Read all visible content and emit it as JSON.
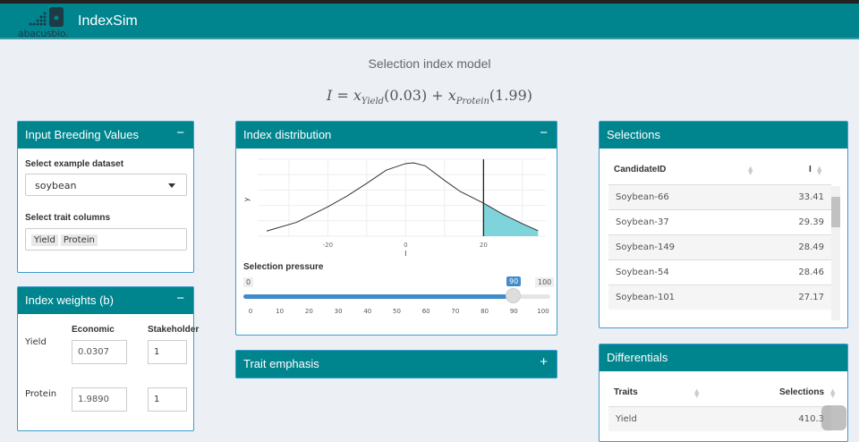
{
  "app": {
    "title": "IndexSim",
    "logo_text": "abacusbio."
  },
  "page": {
    "title": "Selection index model",
    "formula": {
      "lhs": "I",
      "t1_sub": "Yield",
      "t1_coef": "(0.03)",
      "t2_sub": "Protein",
      "t2_coef": "(1.99)"
    }
  },
  "colors": {
    "header": "#00858f",
    "fill": "#7fd3da",
    "slider": "#428bca"
  },
  "input_bv": {
    "title": "Input Breeding Values",
    "collapse_icon": "−",
    "dataset_label": "Select example dataset",
    "dataset_value": "soybean",
    "traits_label": "Select trait columns",
    "traits": [
      "Yield",
      "Protein"
    ]
  },
  "weights": {
    "title": "Index weights (b)",
    "collapse_icon": "−",
    "col1": "Economic",
    "col2": "Stakeholder",
    "rows": [
      {
        "trait": "Yield",
        "economic": "0.0307",
        "stakeholder": "1"
      },
      {
        "trait": "Protein",
        "economic": "1.9890",
        "stakeholder": "1"
      }
    ]
  },
  "distribution": {
    "title": "Index distribution",
    "collapse_icon": "−",
    "slider_label": "Selection pressure",
    "slider_min": "0",
    "slider_max": "100",
    "slider_value": "90",
    "slider_ticks": [
      "0",
      "10",
      "20",
      "30",
      "40",
      "50",
      "60",
      "70",
      "80",
      "90",
      "100"
    ]
  },
  "trait_emphasis": {
    "title": "Trait emphasis",
    "expand_icon": "+"
  },
  "selections": {
    "title": "Selections",
    "col1": "CandidateID",
    "col2": "I",
    "rows": [
      [
        "Soybean-66",
        "33.41"
      ],
      [
        "Soybean-37",
        "29.39"
      ],
      [
        "Soybean-149",
        "28.49"
      ],
      [
        "Soybean-54",
        "28.46"
      ],
      [
        "Soybean-101",
        "27.17"
      ]
    ]
  },
  "differentials": {
    "title": "Differentials",
    "col1": "Traits",
    "col2": "Selections",
    "rows": [
      [
        "Yield",
        "410.3"
      ]
    ]
  },
  "chart_data": {
    "type": "area",
    "xlabel": "I",
    "ylabel": "y",
    "x_ticks": [
      "-20",
      "0",
      "20"
    ],
    "xlim": [
      -38,
      36
    ],
    "threshold": 20,
    "grid": true,
    "points": [
      [
        -35.7,
        0.07
      ],
      [
        -28,
        0.19
      ],
      [
        -20,
        0.4
      ],
      [
        -15,
        0.55
      ],
      [
        -10,
        0.72
      ],
      [
        -5,
        0.9
      ],
      [
        0,
        0.99
      ],
      [
        2,
        1.0
      ],
      [
        5,
        0.96
      ],
      [
        10,
        0.76
      ],
      [
        14,
        0.61
      ],
      [
        20,
        0.45
      ],
      [
        25,
        0.3
      ],
      [
        30,
        0.17
      ],
      [
        34,
        0.075
      ]
    ]
  }
}
